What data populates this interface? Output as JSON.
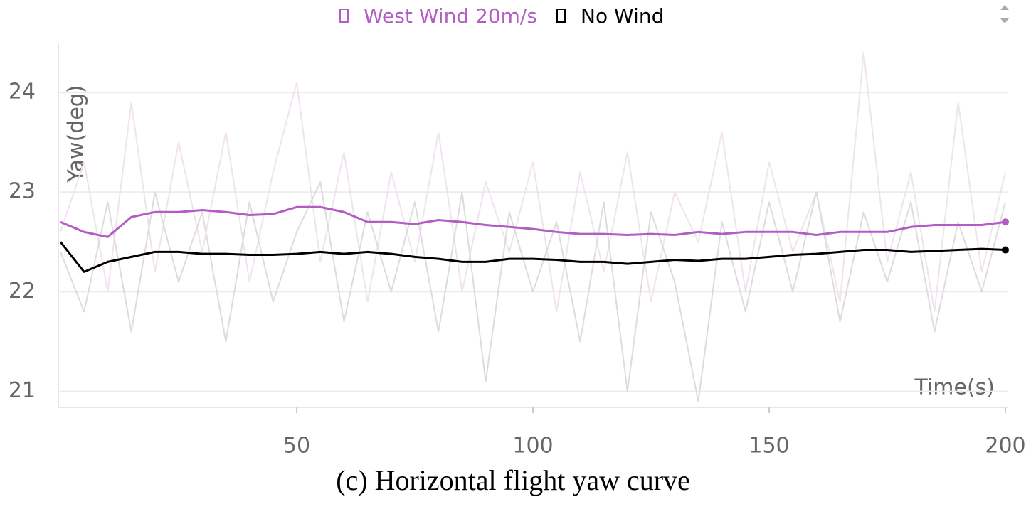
{
  "chart_data": {
    "type": "line",
    "caption": "(c) Horizontal flight yaw curve",
    "ylabel": "Yaw(deg)",
    "xlabel": "Time(s)",
    "x": [
      0,
      5,
      10,
      15,
      20,
      25,
      30,
      35,
      40,
      45,
      50,
      55,
      60,
      65,
      70,
      75,
      80,
      85,
      90,
      95,
      100,
      105,
      110,
      115,
      120,
      125,
      130,
      135,
      140,
      145,
      150,
      155,
      160,
      165,
      170,
      175,
      180,
      185,
      190,
      195,
      200
    ],
    "series": [
      {
        "name": "West Wind 20m/s",
        "color": "#b35dc4",
        "raw_color": "#f0e2f0",
        "values": [
          22.7,
          22.6,
          22.55,
          22.75,
          22.8,
          22.8,
          22.82,
          22.8,
          22.77,
          22.78,
          22.85,
          22.85,
          22.8,
          22.7,
          22.7,
          22.68,
          22.72,
          22.7,
          22.67,
          22.65,
          22.63,
          22.6,
          22.58,
          22.58,
          22.57,
          22.58,
          22.57,
          22.6,
          22.58,
          22.6,
          22.6,
          22.6,
          22.57,
          22.6,
          22.6,
          22.6,
          22.65,
          22.67,
          22.67,
          22.67,
          22.7
        ],
        "raw_values": [
          22.6,
          23.3,
          22.0,
          23.9,
          22.2,
          23.5,
          22.4,
          23.6,
          22.1,
          23.2,
          24.1,
          22.3,
          23.4,
          21.9,
          23.2,
          22.3,
          23.6,
          22.0,
          23.1,
          22.4,
          23.3,
          21.8,
          23.2,
          22.2,
          23.4,
          21.9,
          23.0,
          22.5,
          23.6,
          22.0,
          23.3,
          22.4,
          23.0,
          21.9,
          24.4,
          22.3,
          23.2,
          21.8,
          23.9,
          22.2,
          23.2
        ]
      },
      {
        "name": "No Wind",
        "color": "#000000",
        "raw_color": "#dcdcdc",
        "values": [
          22.5,
          22.2,
          22.3,
          22.35,
          22.4,
          22.4,
          22.38,
          22.38,
          22.37,
          22.37,
          22.38,
          22.4,
          22.38,
          22.4,
          22.38,
          22.35,
          22.33,
          22.3,
          22.3,
          22.33,
          22.33,
          22.32,
          22.3,
          22.3,
          22.28,
          22.3,
          22.32,
          22.31,
          22.33,
          22.33,
          22.35,
          22.37,
          22.38,
          22.4,
          22.42,
          22.42,
          22.4,
          22.41,
          22.42,
          22.43,
          22.42
        ],
        "raw_values": [
          22.4,
          21.8,
          22.9,
          21.6,
          23.0,
          22.1,
          22.8,
          21.5,
          22.9,
          21.9,
          22.6,
          23.1,
          21.7,
          22.8,
          22.0,
          22.9,
          21.6,
          23.0,
          21.1,
          22.8,
          22.0,
          22.7,
          21.5,
          22.9,
          21.0,
          22.8,
          22.1,
          20.9,
          22.7,
          21.8,
          22.9,
          22.0,
          23.0,
          21.7,
          22.8,
          22.1,
          22.9,
          21.6,
          22.7,
          22.0,
          22.9
        ]
      }
    ],
    "xlim": [
      0,
      200
    ],
    "ylim": [
      20.84,
      24.5
    ],
    "xticks": [
      50,
      100,
      150,
      200
    ],
    "yticks": [
      21,
      22,
      23,
      24
    ],
    "grid": true
  }
}
